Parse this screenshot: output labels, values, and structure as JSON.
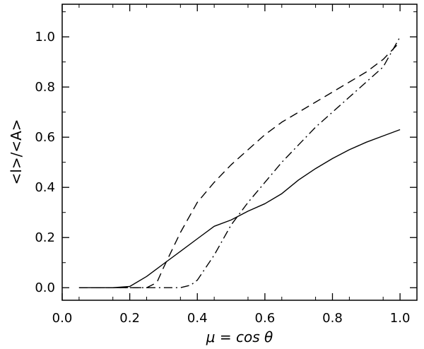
{
  "chart_data": {
    "type": "line",
    "title": "",
    "xlabel": "μ = cos θ",
    "ylabel": "<l>/<A>",
    "xlim": [
      0.0,
      1.05
    ],
    "ylim": [
      -0.05,
      1.13
    ],
    "x_ticks": [
      "0.0",
      "0.2",
      "0.4",
      "0.6",
      "0.8",
      "1.0"
    ],
    "y_ticks": [
      "0.0",
      "0.2",
      "0.4",
      "0.6",
      "0.8",
      "1.0"
    ],
    "grid": false,
    "legend": "none",
    "series": [
      {
        "style": "solid",
        "color": "#000000",
        "x": [
          0.05,
          0.1,
          0.15,
          0.2,
          0.25,
          0.3,
          0.35,
          0.4,
          0.45,
          0.5,
          0.55,
          0.6,
          0.65,
          0.7,
          0.75,
          0.8,
          0.85,
          0.9,
          0.95,
          1.0
        ],
        "y": [
          0.0,
          0.0,
          0.0,
          0.005,
          0.045,
          0.095,
          0.145,
          0.195,
          0.245,
          0.27,
          0.305,
          0.335,
          0.375,
          0.43,
          0.475,
          0.515,
          0.55,
          0.58,
          0.605,
          0.63
        ]
      },
      {
        "style": "dashed",
        "color": "#000000",
        "x": [
          0.05,
          0.1,
          0.15,
          0.2,
          0.25,
          0.28,
          0.3,
          0.35,
          0.4,
          0.45,
          0.5,
          0.55,
          0.6,
          0.65,
          0.7,
          0.75,
          0.8,
          0.85,
          0.9,
          0.95,
          1.0
        ],
        "y": [
          0.0,
          0.0,
          0.0,
          0.0,
          0.0,
          0.02,
          0.08,
          0.22,
          0.34,
          0.42,
          0.49,
          0.55,
          0.61,
          0.66,
          0.7,
          0.74,
          0.78,
          0.82,
          0.86,
          0.91,
          0.98
        ]
      },
      {
        "style": "dash-dot",
        "color": "#000000",
        "x": [
          0.05,
          0.1,
          0.15,
          0.2,
          0.25,
          0.3,
          0.35,
          0.38,
          0.4,
          0.45,
          0.5,
          0.55,
          0.6,
          0.65,
          0.7,
          0.75,
          0.8,
          0.85,
          0.9,
          0.95,
          1.0
        ],
        "y": [
          0.0,
          0.0,
          0.0,
          0.0,
          0.0,
          0.0,
          0.0,
          0.01,
          0.03,
          0.13,
          0.25,
          0.34,
          0.42,
          0.5,
          0.57,
          0.64,
          0.7,
          0.76,
          0.82,
          0.88,
          1.0
        ]
      }
    ]
  }
}
